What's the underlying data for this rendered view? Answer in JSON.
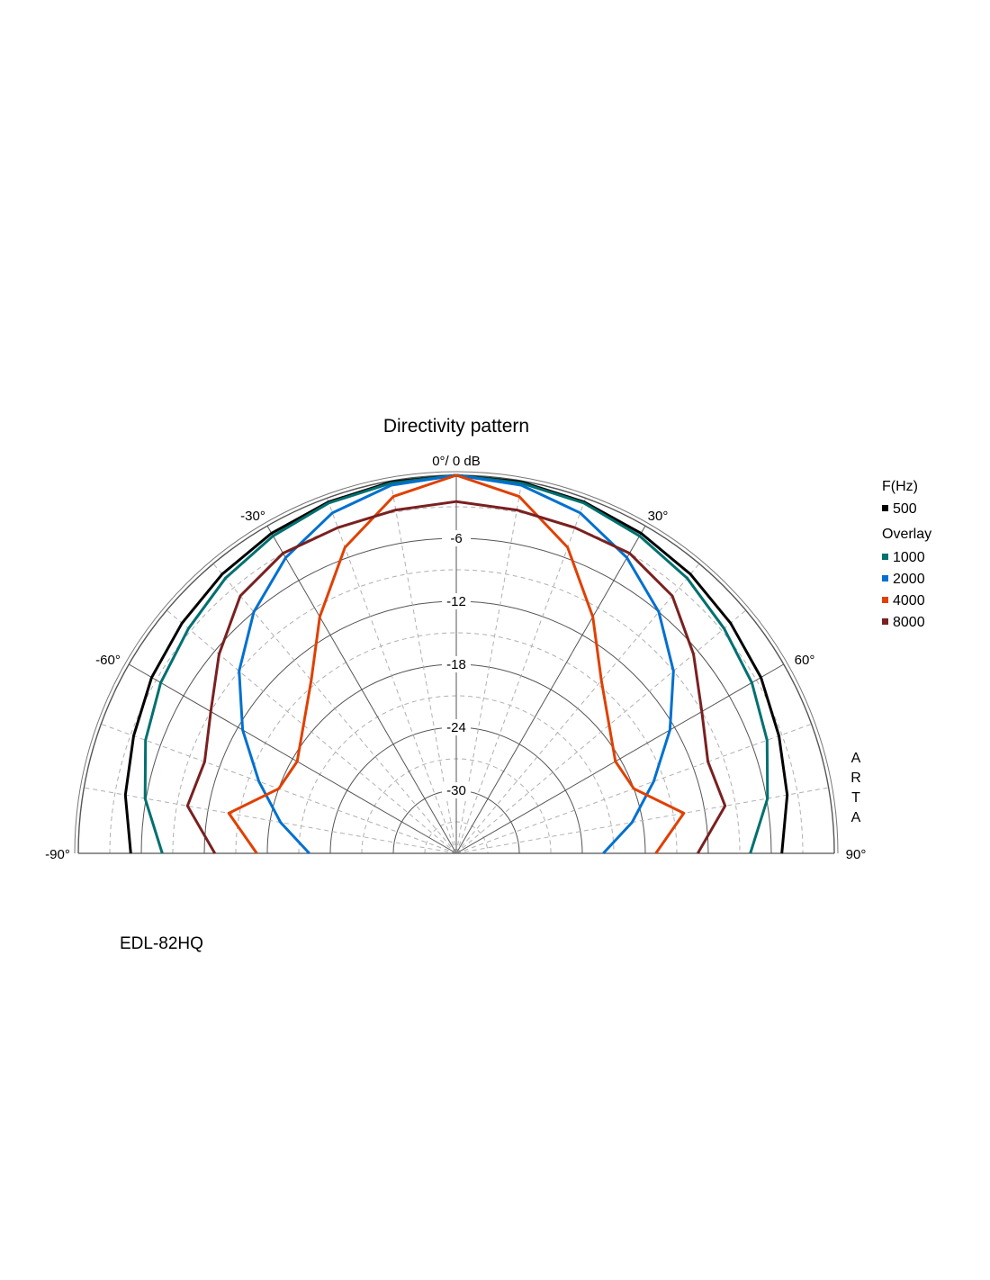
{
  "chart_data": {
    "type": "polar",
    "title": "Directivity pattern",
    "top_label": "0°/ 0 dB",
    "angle_labels": [
      "-90°",
      "-60°",
      "-30°",
      "30°",
      "60°",
      "90°"
    ],
    "db_labels": [
      "-6",
      "-12",
      "-18",
      "-24",
      "-30"
    ],
    "db_range": [
      -36,
      0
    ],
    "angle_range": [
      -90,
      90
    ],
    "legend_header": "F(Hz)",
    "overlay_label": "Overlay",
    "angles": [
      -90,
      -80,
      -70,
      -60,
      -50,
      -40,
      -30,
      -20,
      -10,
      0,
      10,
      20,
      30,
      40,
      50,
      60,
      70,
      80,
      90
    ],
    "series": [
      {
        "name": "500",
        "color": "#000000",
        "overlay": false,
        "values": [
          -5.0,
          -4.0,
          -3.3,
          -2.5,
          -1.9,
          -1.3,
          -0.8,
          -0.4,
          -0.1,
          0,
          -0.1,
          -0.4,
          -0.8,
          -1.3,
          -1.9,
          -2.5,
          -3.3,
          -4.0,
          -5.0
        ]
      },
      {
        "name": "1000",
        "color": "#007070",
        "overlay": true,
        "values": [
          -8.0,
          -5.9,
          -4.5,
          -3.5,
          -2.7,
          -1.8,
          -1.1,
          -0.5,
          -0.2,
          0,
          -0.2,
          -0.5,
          -1.1,
          -1.8,
          -2.7,
          -3.5,
          -4.5,
          -5.9,
          -8.0
        ]
      },
      {
        "name": "2000",
        "color": "#0070d0",
        "overlay": true,
        "values": [
          -22.0,
          -19.0,
          -16.0,
          -12.5,
          -9.0,
          -6.0,
          -3.5,
          -1.5,
          -0.4,
          0,
          -0.4,
          -1.5,
          -3.5,
          -6.0,
          -9.0,
          -12.5,
          -16.0,
          -19.0,
          -22.0
        ]
      },
      {
        "name": "4000",
        "color": "#e04000",
        "overlay": true,
        "values": [
          -17.0,
          -14.0,
          -18.0,
          -18.5,
          -17.0,
          -14.5,
          -10.0,
          -5.0,
          -1.5,
          0,
          -1.5,
          -5.0,
          -10.0,
          -14.5,
          -17.0,
          -18.5,
          -18.0,
          -14.0,
          -17.0
        ]
      },
      {
        "name": "8000",
        "color": "#7a2020",
        "overlay": true,
        "values": [
          -13.0,
          -10.0,
          -10.5,
          -9.0,
          -6.5,
          -4.0,
          -3.0,
          -3.0,
          -2.8,
          -2.5,
          -2.8,
          -3.0,
          -3.0,
          -4.0,
          -6.5,
          -9.0,
          -10.5,
          -10.0,
          -13.0
        ]
      }
    ]
  },
  "caption": "EDL-82HQ",
  "watermark": [
    "A",
    "R",
    "T",
    "A"
  ]
}
